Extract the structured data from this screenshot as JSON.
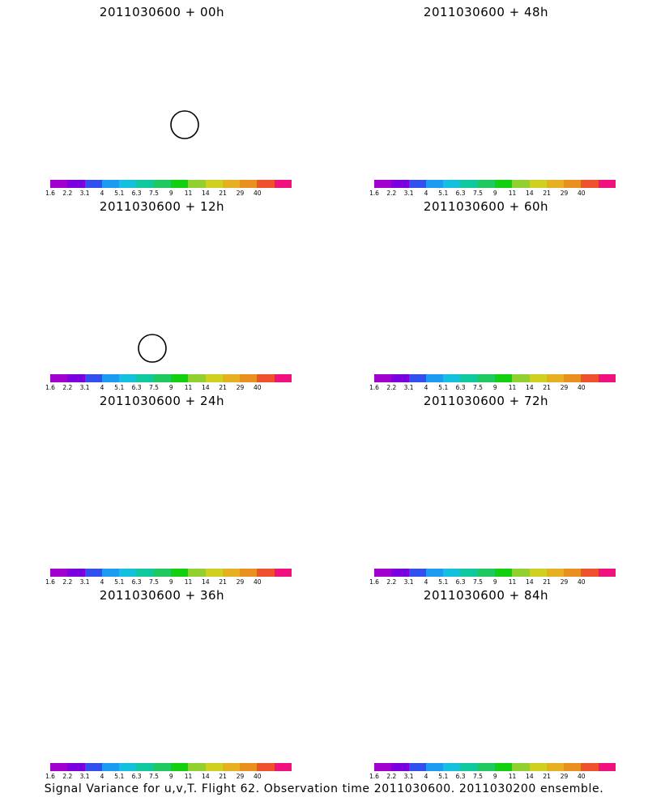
{
  "caption": "Signal Variance for u,v,T. Flight 62. Observation time 2011030600. 2011030200 ensemble.",
  "colorbar": {
    "labels": [
      "1.6",
      "2.2",
      "3.1",
      "4",
      "5.1",
      "6.3",
      "7.5",
      "9",
      "11",
      "14",
      "21",
      "29",
      "40"
    ],
    "colors": [
      "#a000d0",
      "#7a00e0",
      "#3050f0",
      "#1c9cf0",
      "#14c0e0",
      "#10c8a0",
      "#20c860",
      "#10d010",
      "#90d030",
      "#d0d020",
      "#e8b020",
      "#e89020",
      "#f05030",
      "#f01080"
    ]
  },
  "panels": [
    {
      "title": "2011030600 + 00h",
      "forecast_hour": 0,
      "extent": 0,
      "circle": true
    },
    {
      "title": "2011030600 + 48h",
      "forecast_hour": 48,
      "extent": 3,
      "circle": false
    },
    {
      "title": "2011030600 + 12h",
      "forecast_hour": 12,
      "extent": 1,
      "circle": true
    },
    {
      "title": "2011030600 + 60h",
      "forecast_hour": 60,
      "extent": 4,
      "circle": false
    },
    {
      "title": "2011030600 + 24h",
      "forecast_hour": 24,
      "extent": 1.5,
      "circle": false
    },
    {
      "title": "2011030600 + 72h",
      "forecast_hour": 72,
      "extent": 5,
      "circle": false
    },
    {
      "title": "2011030600 + 36h",
      "forecast_hour": 36,
      "extent": 2,
      "circle": false
    },
    {
      "title": "2011030600 + 84h",
      "forecast_hour": 84,
      "extent": 6,
      "circle": false
    }
  ]
}
